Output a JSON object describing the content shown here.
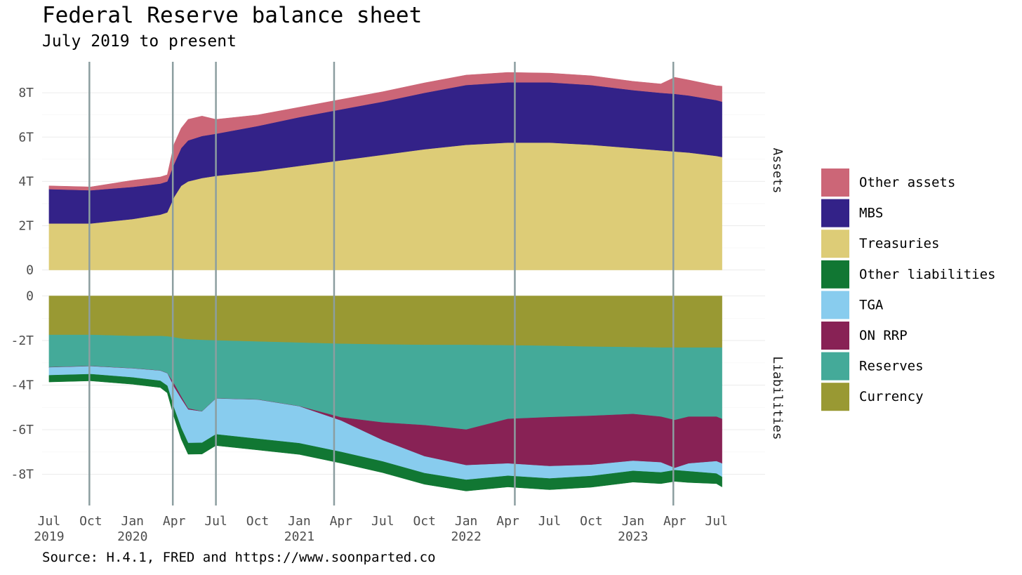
{
  "chart_data": {
    "type": "area",
    "title": "Federal Reserve balance sheet",
    "subtitle": "July 2019 to present",
    "caption": "Source: H.4.1, FRED and https://www.soonparted.co",
    "x_units": "months since Jul 2019",
    "x_ticks": [
      {
        "x": 0,
        "label": "Jul",
        "year": "2019"
      },
      {
        "x": 3,
        "label": "Oct",
        "year": ""
      },
      {
        "x": 6,
        "label": "Jan",
        "year": "2020"
      },
      {
        "x": 9,
        "label": "Apr",
        "year": ""
      },
      {
        "x": 12,
        "label": "Jul",
        "year": ""
      },
      {
        "x": 15,
        "label": "Oct",
        "year": ""
      },
      {
        "x": 18,
        "label": "Jan",
        "year": "2021"
      },
      {
        "x": 21,
        "label": "Apr",
        "year": ""
      },
      {
        "x": 24,
        "label": "Jul",
        "year": ""
      },
      {
        "x": 27,
        "label": "Oct",
        "year": ""
      },
      {
        "x": 30,
        "label": "Jan",
        "year": "2022"
      },
      {
        "x": 33,
        "label": "Apr",
        "year": ""
      },
      {
        "x": 36,
        "label": "Jul",
        "year": ""
      },
      {
        "x": 39,
        "label": "Oct",
        "year": ""
      },
      {
        "x": 42,
        "label": "Jan",
        "year": "2023"
      },
      {
        "x": 45,
        "label": "Apr",
        "year": ""
      },
      {
        "x": 48,
        "label": "Jul",
        "year": ""
      }
    ],
    "xlim": [
      -0.5,
      51.5
    ],
    "event_lines_x": [
      2.9,
      8.9,
      12.0,
      20.5,
      33.5,
      44.9
    ],
    "legend": [
      {
        "name": "Other assets",
        "color": "#CC6677"
      },
      {
        "name": "MBS",
        "color": "#332288"
      },
      {
        "name": "Treasuries",
        "color": "#DDCC77"
      },
      {
        "name": "Other liabilities",
        "color": "#117733"
      },
      {
        "name": "TGA",
        "color": "#88CCEE"
      },
      {
        "name": "ON RRP",
        "color": "#882255"
      },
      {
        "name": "Reserves",
        "color": "#44AA99"
      },
      {
        "name": "Currency",
        "color": "#999933"
      }
    ],
    "panels": [
      {
        "name": "Assets",
        "ylim": [
          -0.3,
          9.4
        ],
        "y_ticks": [
          0,
          2,
          4,
          6,
          8
        ],
        "y_tick_labels": [
          "0",
          "2T",
          "4T",
          "6T",
          "8T"
        ],
        "x": [
          0,
          3,
          6,
          8,
          8.5,
          9,
          9.5,
          10,
          11,
          12,
          15,
          18,
          21,
          24,
          27,
          30,
          33,
          36,
          39,
          42,
          44,
          45,
          46,
          48,
          48.4
        ],
        "series": [
          {
            "name": "Treasuries",
            "color": "#DDCC77",
            "values": [
              2.1,
              2.1,
              2.3,
              2.5,
              2.6,
              3.3,
              3.8,
              4.0,
              4.15,
              4.25,
              4.45,
              4.7,
              4.95,
              5.2,
              5.45,
              5.65,
              5.75,
              5.75,
              5.65,
              5.5,
              5.4,
              5.35,
              5.3,
              5.15,
              5.1
            ]
          },
          {
            "name": "MBS",
            "color": "#332288",
            "values": [
              1.55,
              1.5,
              1.45,
              1.4,
              1.4,
              1.5,
              1.7,
              1.85,
              1.9,
              1.9,
              2.05,
              2.2,
              2.3,
              2.4,
              2.55,
              2.7,
              2.72,
              2.72,
              2.7,
              2.62,
              2.6,
              2.6,
              2.58,
              2.52,
              2.5
            ]
          },
          {
            "name": "Other assets",
            "color": "#CC6677",
            "values": [
              0.15,
              0.15,
              0.3,
              0.3,
              0.3,
              0.9,
              0.9,
              0.95,
              0.9,
              0.65,
              0.5,
              0.45,
              0.45,
              0.45,
              0.45,
              0.45,
              0.45,
              0.42,
              0.42,
              0.4,
              0.4,
              0.75,
              0.7,
              0.65,
              0.7
            ]
          }
        ]
      },
      {
        "name": "Liabilities",
        "ylim": [
          -9.4,
          0.3
        ],
        "y_ticks": [
          0,
          -2,
          -4,
          -6,
          -8
        ],
        "y_tick_labels": [
          "0",
          "-2T",
          "-4T",
          "-6T",
          "-8T"
        ],
        "x": [
          0,
          3,
          6,
          8,
          8.5,
          9,
          9.5,
          10,
          11,
          12,
          15,
          18,
          21,
          24,
          27,
          30,
          33,
          36,
          39,
          42,
          44,
          45,
          46,
          48,
          48.4
        ],
        "series": [
          {
            "name": "Currency",
            "color": "#999933",
            "values": [
              -1.75,
              -1.75,
              -1.8,
              -1.8,
              -1.82,
              -1.86,
              -1.92,
              -1.95,
              -1.98,
              -2.0,
              -2.05,
              -2.1,
              -2.15,
              -2.18,
              -2.2,
              -2.2,
              -2.22,
              -2.24,
              -2.28,
              -2.3,
              -2.32,
              -2.32,
              -2.32,
              -2.32,
              -2.32
            ]
          },
          {
            "name": "Reserves",
            "color": "#44AA99",
            "values": [
              -1.45,
              -1.4,
              -1.45,
              -1.55,
              -1.65,
              -2.1,
              -2.6,
              -3.1,
              -3.2,
              -2.6,
              -2.6,
              -2.85,
              -3.3,
              -3.5,
              -3.6,
              -3.8,
              -3.3,
              -3.2,
              -3.1,
              -3.0,
              -3.1,
              -3.25,
              -3.1,
              -3.1,
              -3.2
            ]
          },
          {
            "name": "ON RRP",
            "color": "#882255",
            "values": [
              -0.01,
              -0.01,
              -0.01,
              -0.01,
              -0.01,
              -0.15,
              -0.1,
              -0.05,
              -0.01,
              -0.01,
              -0.01,
              -0.01,
              -0.15,
              -0.8,
              -1.4,
              -1.6,
              -2.0,
              -2.2,
              -2.2,
              -2.1,
              -2.05,
              -2.15,
              -2.1,
              -2.0,
              -2.0
            ]
          },
          {
            "name": "TGA",
            "color": "#88CCEE",
            "values": [
              -0.35,
              -0.35,
              -0.4,
              -0.45,
              -0.55,
              -0.95,
              -1.3,
              -1.5,
              -1.4,
              -1.6,
              -1.75,
              -1.65,
              -1.4,
              -0.95,
              -0.75,
              -0.65,
              -0.55,
              -0.55,
              -0.5,
              -0.45,
              -0.45,
              -0.1,
              -0.35,
              -0.55,
              -0.6
            ]
          },
          {
            "name": "Other liabilities",
            "color": "#117733",
            "values": [
              -0.3,
              -0.3,
              -0.3,
              -0.3,
              -0.32,
              -0.4,
              -0.5,
              -0.5,
              -0.5,
              -0.5,
              -0.5,
              -0.5,
              -0.5,
              -0.5,
              -0.5,
              -0.5,
              -0.5,
              -0.5,
              -0.5,
              -0.5,
              -0.5,
              -0.5,
              -0.5,
              -0.45,
              -0.45
            ]
          }
        ]
      }
    ]
  }
}
